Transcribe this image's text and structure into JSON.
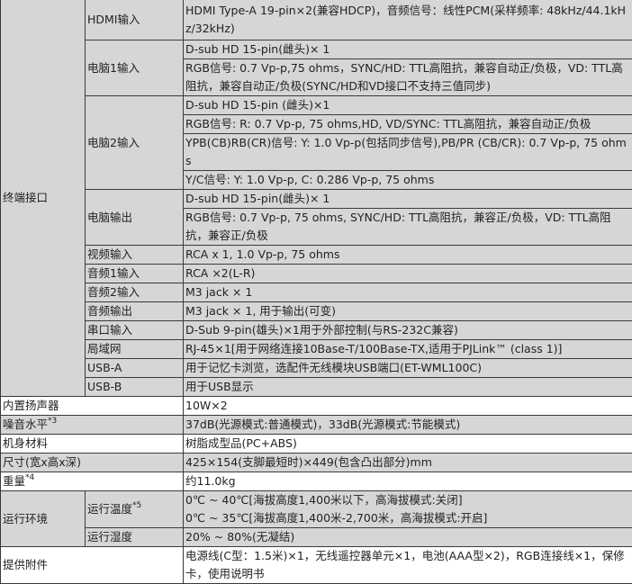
{
  "terminal": {
    "label": "终端接口",
    "hdmi": {
      "label": "HDMI输入",
      "value": "HDMI Type-A 19-pin×2(兼容HDCP)，音频信号：线性PCM(采样频率: 48kHz/44.1kHz/32kHz)"
    },
    "pc1": {
      "label": "电脑1输入",
      "values": [
        "D-sub HD 15-pin(雌头)× 1",
        "RGB信号: 0.7 Vp-p,75 ohms，SYNC/HD: TTL高阻抗，兼容自动正/负极，VD: TTL高阻抗，兼容自动正/负极(SYNC/HD和VD接口不支持三值同步)"
      ]
    },
    "pc2": {
      "label": "电脑2输入",
      "values": [
        "D-sub HD 15-pin (雌头)×1",
        "RGB信号: R: 0.7 Vp-p, 75 ohms,HD, VD/SYNC: TTL高阻抗，兼容自动正/负极",
        "YPB(CB)RB(CR)信号: Y: 1.0 Vp-p(包括同步信号),PB/PR (CB/CR): 0.7 Vp-p, 75 ohms",
        "Y/C信号: Y: 1.0 Vp-p, C: 0.286 Vp-p, 75 ohms"
      ]
    },
    "pcout": {
      "label": "电脑输出",
      "values": [
        "D-sub HD 15-pin(雌头)× 1",
        "RGB信号: 0.7 Vp-p, 75 ohms, SYNC/HD: TTL高阻抗，兼容正/负极，VD: TTL高阻抗，兼容正/负极"
      ]
    },
    "rows": [
      {
        "label": "视频输入",
        "value": "RCA x 1, 1.0 Vp-p, 75 ohms"
      },
      {
        "label": "音频1输入",
        "value": "RCA ×2(L-R)"
      },
      {
        "label": "音频2输入",
        "value": "M3 jack × 1"
      },
      {
        "label": "音频输出",
        "value": "M3 jack × 1, 用于输出(可变)"
      },
      {
        "label": "串口输入",
        "value": "D-Sub 9-pin(雄头)×1用于外部控制(与RS-232C兼容)"
      },
      {
        "label": "局域网",
        "value": "RJ-45×1[用于网络连接10Base-T/100Base-TX,适用于PJLink™ (class 1)]"
      },
      {
        "label": "USB-A",
        "value": "用于记忆卡浏览，选配件无线模块USB端口(ET-WML100C)"
      },
      {
        "label": "USB-B",
        "value": "用于USB显示"
      }
    ]
  },
  "speaker": {
    "label": "内置扬声器",
    "value": "10W×2"
  },
  "noise": {
    "label": "噪音水平",
    "note": "*3",
    "value": "37dB(光源模式:普通模式)，33dB(光源模式:节能模式)"
  },
  "material": {
    "label": "机身材料",
    "value": "树脂成型品(PC+ABS)"
  },
  "size": {
    "label": "尺寸(宽x高x深)",
    "value": "425×154(支脚最短时)×449(包含凸出部分)mm"
  },
  "weight": {
    "label": "重量",
    "note": "*4",
    "value": "约11.0kg"
  },
  "env": {
    "label": "运行环境",
    "temp": {
      "label": "运行温度",
      "note": "*5",
      "values": [
        "0℃ ~ 40℃[海拔高度1,400米以下，高海拔模式:关闭]",
        "0℃ ~ 35℃[海拔高度1,400米-2,700米，高海拔模式:开启]"
      ]
    },
    "humidity": {
      "label": "运行湿度",
      "value": "20% ~ 80%(无凝结)"
    }
  },
  "accessories": {
    "label": "提供附件",
    "value": "电源线(C型：1.5米)×1，无线遥控器单元×1，电池(AAA型×2)，RGB连接线×1，保修卡，使用说明书"
  }
}
